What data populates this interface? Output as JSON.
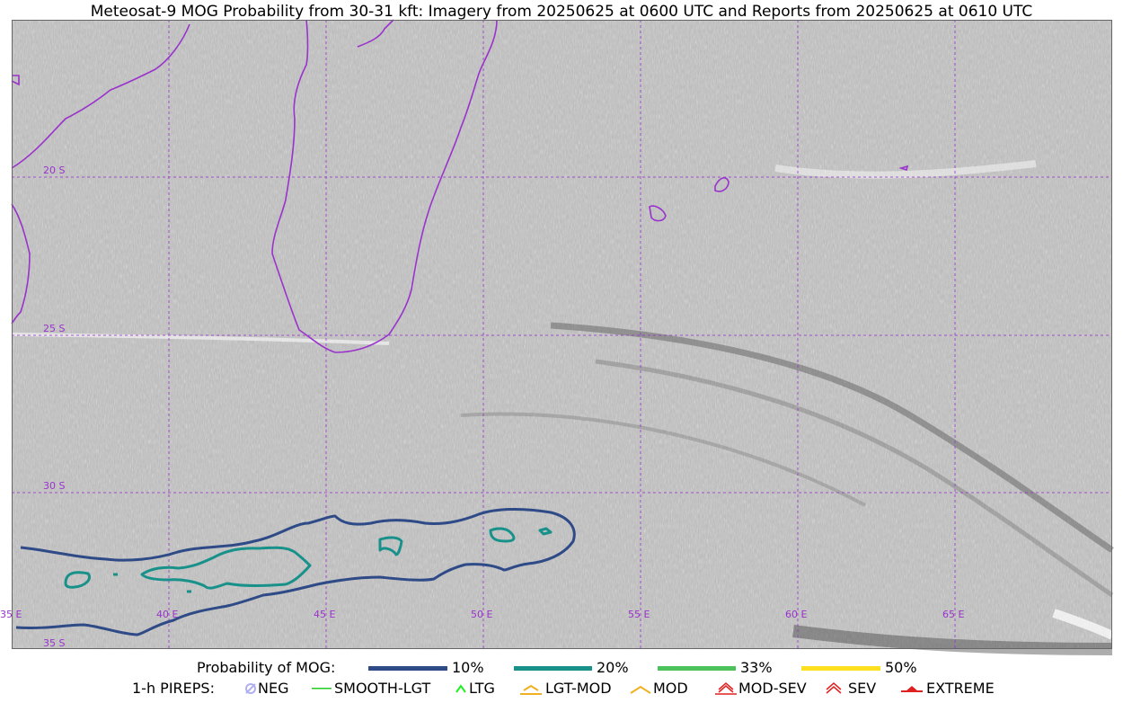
{
  "title": "Meteosat-9 MOG Probability from 30-31 kft: Imagery from 20250625 at 0600 UTC and Reports from 20250625 at 0610 UTC",
  "map": {
    "lat_labels": [
      "20 S",
      "25 S",
      "30 S",
      "35 S"
    ],
    "lon_labels": [
      "35 E",
      "40 E",
      "45 E",
      "50 E",
      "55 E",
      "60 E",
      "65 E"
    ],
    "colors": {
      "coast": "#9933cc",
      "grid": "#9933cc",
      "p10": "#2e4a87",
      "p20": "#17918a"
    }
  },
  "legend": {
    "prob_title": "Probability of MOG:",
    "prob_items": [
      {
        "label": "10%",
        "color": "#2e4a87"
      },
      {
        "label": "20%",
        "color": "#17918a"
      },
      {
        "label": "33%",
        "color": "#4cc35a"
      },
      {
        "label": "50%",
        "color": "#ffe020"
      }
    ],
    "pirep_title": "1-h PIREPS:",
    "pirep_items": [
      {
        "label": "NEG",
        "color": "#b0b0f0",
        "icon": "neg-icon"
      },
      {
        "label": "SMOOTH-LGT",
        "color": "#22cc22",
        "icon": "smooth-lgt-icon"
      },
      {
        "label": "LTG",
        "color": "#22ee22",
        "icon": "ltg-icon"
      },
      {
        "label": "LGT-MOD",
        "color": "#f0b020",
        "icon": "lgt-mod-icon"
      },
      {
        "label": "MOD",
        "color": "#f0b020",
        "icon": "mod-icon"
      },
      {
        "label": "MOD-SEV",
        "color": "#e02020",
        "icon": "mod-sev-icon"
      },
      {
        "label": "SEV",
        "color": "#e02020",
        "icon": "sev-icon"
      },
      {
        "label": "EXTREME",
        "color": "#e02020",
        "icon": "extreme-icon"
      }
    ]
  }
}
